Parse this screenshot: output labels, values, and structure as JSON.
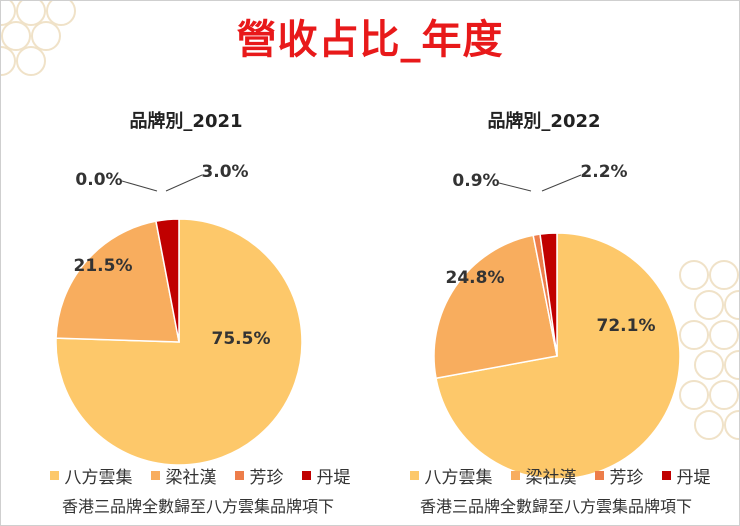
{
  "main_title": "營收占比_年度",
  "note": "香港三品牌全數歸至八方雲集品牌項下",
  "colors": {
    "title": "#e8191a",
    "series": [
      "#fdc86a",
      "#f8ad5e",
      "#ed7d4a",
      "#c00000"
    ]
  },
  "chart_data": [
    {
      "type": "pie",
      "title": "品牌別_2021",
      "categories": [
        "八方雲集",
        "梁社漢",
        "芳珍",
        "丹堤"
      ],
      "values": [
        75.5,
        21.5,
        0.0,
        3.0
      ],
      "labels": [
        "75.5%",
        "21.5%",
        "0.0%",
        "3.0%"
      ],
      "legend_position": "bottom"
    },
    {
      "type": "pie",
      "title": "品牌別_2022",
      "categories": [
        "八方雲集",
        "梁社漢",
        "芳珍",
        "丹堤"
      ],
      "values": [
        72.1,
        24.8,
        0.9,
        2.2
      ],
      "labels": [
        "72.1%",
        "24.8%",
        "0.9%",
        "2.2%"
      ],
      "legend_position": "bottom"
    }
  ]
}
